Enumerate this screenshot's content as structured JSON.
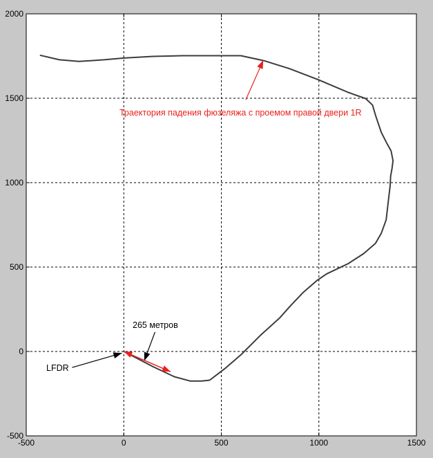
{
  "chart_data": {
    "type": "line",
    "title": "",
    "xlabel": "",
    "ylabel": "",
    "xlim": [
      -500,
      1500
    ],
    "ylim": [
      -500,
      2000
    ],
    "grid": true,
    "xticks": [
      -500,
      0,
      500,
      1000,
      1500
    ],
    "yticks": [
      -500,
      0,
      500,
      1000,
      1500,
      2000
    ],
    "xtick_labels": [
      "-500",
      "0",
      "500",
      "1000",
      "1500"
    ],
    "ytick_labels": [
      "-500",
      "0",
      "500",
      "1000",
      "1500",
      "2000"
    ],
    "series": [
      {
        "color": "#3c3c3c",
        "points": [
          [
            -430,
            1755
          ],
          [
            -330,
            1728
          ],
          [
            -230,
            1718
          ],
          [
            -100,
            1728
          ],
          [
            0,
            1738
          ],
          [
            150,
            1748
          ],
          [
            300,
            1752
          ],
          [
            450,
            1752
          ],
          [
            600,
            1752
          ],
          [
            720,
            1722
          ],
          [
            850,
            1675
          ],
          [
            1000,
            1608
          ],
          [
            1150,
            1535
          ],
          [
            1240,
            1498
          ],
          [
            1275,
            1460
          ],
          [
            1290,
            1400
          ],
          [
            1320,
            1298
          ],
          [
            1350,
            1230
          ],
          [
            1370,
            1188
          ],
          [
            1380,
            1130
          ],
          [
            1375,
            1085
          ],
          [
            1368,
            1040
          ],
          [
            1365,
            980
          ],
          [
            1355,
            880
          ],
          [
            1345,
            780
          ],
          [
            1320,
            700
          ],
          [
            1290,
            640
          ],
          [
            1230,
            580
          ],
          [
            1150,
            520
          ],
          [
            1040,
            460
          ],
          [
            990,
            420
          ],
          [
            920,
            350
          ],
          [
            850,
            265
          ],
          [
            800,
            200
          ],
          [
            700,
            95
          ],
          [
            600,
            -20
          ],
          [
            520,
            -100
          ],
          [
            480,
            -135
          ],
          [
            440,
            -170
          ],
          [
            400,
            -175
          ],
          [
            340,
            -175
          ],
          [
            260,
            -150
          ],
          [
            150,
            -90
          ],
          [
            0,
            0
          ]
        ]
      }
    ],
    "annotations": [
      {
        "text": "Траектория падения фюзеляжа с проемом правой двери 1R",
        "color": "#e8211e",
        "arrow_to": [
          715,
          1725
        ],
        "arrow_from": [
          625,
          1490
        ]
      },
      {
        "text": "265 метров",
        "color": "#000000",
        "arrow_to": [
          105,
          -55
        ],
        "arrow_from": [
          160,
          115
        ]
      },
      {
        "text": "LFDR",
        "color": "#000000",
        "arrow_to": [
          -10,
          -10
        ],
        "arrow_from": [
          -265,
          -95
        ]
      }
    ],
    "red_arrow": {
      "from": [
        0,
        0
      ],
      "to": [
        240,
        -120
      ],
      "color": "#e8211e"
    }
  }
}
